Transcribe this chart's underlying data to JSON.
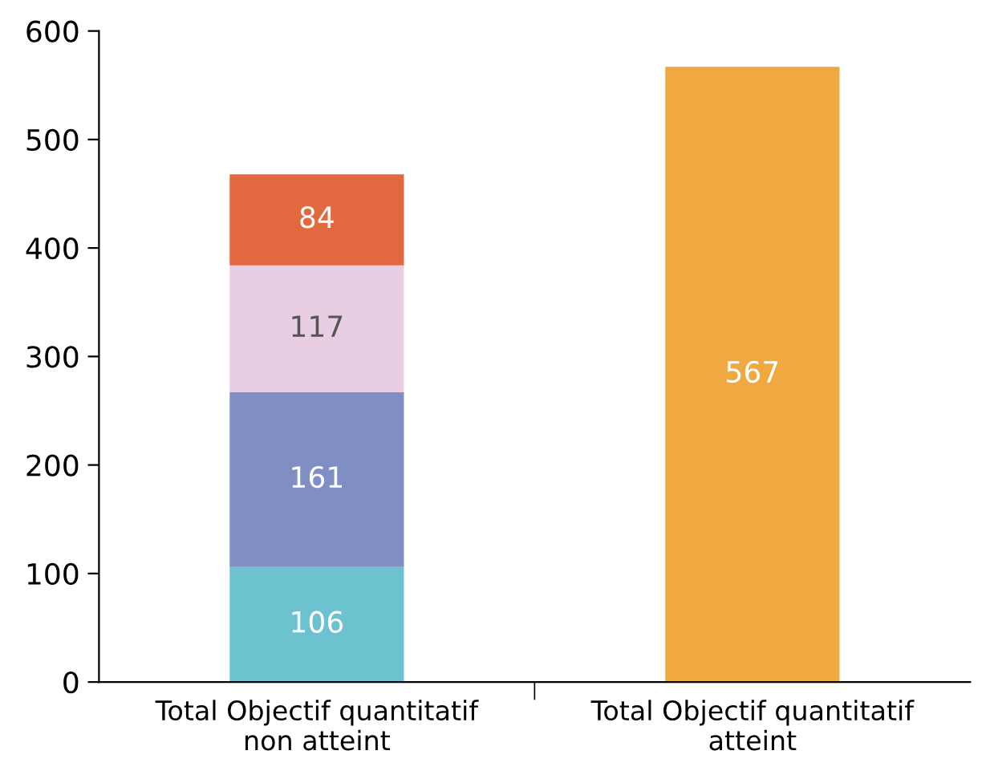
{
  "chart_data": {
    "type": "bar",
    "stacked": true,
    "categories": [
      "Total Objectif quantitatif\nnon atteint",
      "Total Objectif quantitatif\natteint"
    ],
    "series": [
      {
        "color": "#6cc3cf",
        "values": [
          106,
          null
        ]
      },
      {
        "color": "#7f8fc4",
        "values": [
          161,
          null
        ]
      },
      {
        "color": "#e9cde3",
        "values": [
          117,
          null
        ]
      },
      {
        "color": "#e2693f",
        "values": [
          84,
          null
        ]
      },
      {
        "color": "#f0a840",
        "values": [
          null,
          567
        ]
      }
    ],
    "ylim": [
      0,
      600
    ],
    "yticks": [
      0,
      100,
      200,
      300,
      400,
      500,
      600
    ],
    "grid": false,
    "legend": false,
    "data_labels": true
  }
}
